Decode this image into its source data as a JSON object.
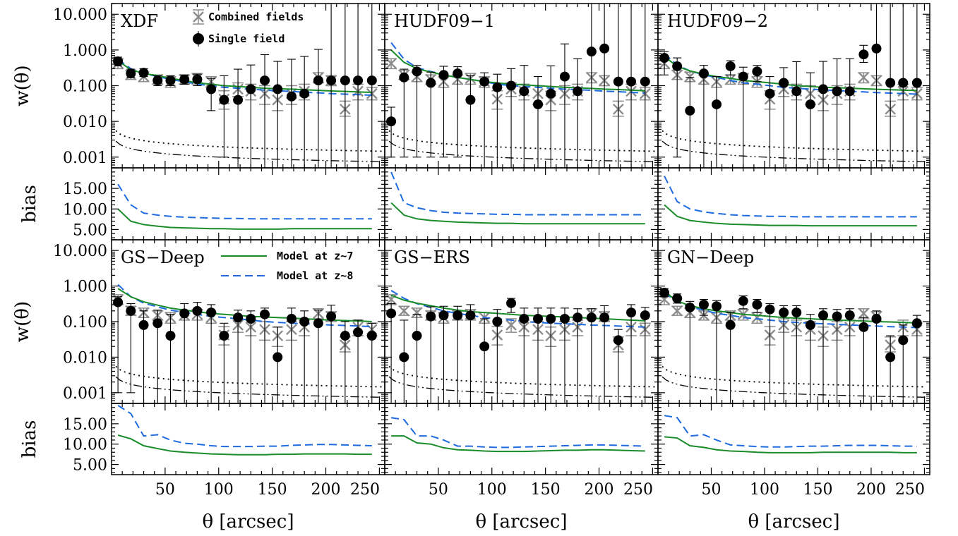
{
  "chart_data": {
    "type": "scatter",
    "xlabel": "θ [arcsec]",
    "ylabel_top": "w(θ)",
    "ylabel_bottom": "bias",
    "xlim": [
      0,
      255
    ],
    "xticks": [
      50,
      100,
      150,
      200,
      250
    ],
    "wtheta_ylim": [
      0.0005,
      20
    ],
    "wtheta_log": true,
    "wtheta_ticks": [
      0.001,
      0.01,
      0.1,
      1,
      10
    ],
    "wtheta_tick_labels": [
      "0.001",
      "0.010",
      "0.100",
      "1.000",
      "10.000"
    ],
    "bias_ylim": [
      2.5,
      20
    ],
    "bias_ticks": [
      5,
      10,
      15
    ],
    "bias_tick_labels": [
      "5.00",
      "10.00",
      "15.00"
    ],
    "legend": {
      "combined": "Combined fields",
      "single": "Single field",
      "model7": "Model at z~7",
      "model8": "Model at z~8"
    },
    "colors": {
      "model7": "#1a8c2a",
      "model8": "#1e6be0",
      "combined": "#8c8c8c",
      "single": "#000000"
    },
    "theta": [
      6,
      18,
      30,
      43,
      55,
      68,
      80,
      93,
      105,
      118,
      130,
      143,
      155,
      168,
      180,
      193,
      205,
      218,
      230,
      243
    ],
    "combined_fields": [
      0.42,
      0.2,
      0.18,
      0.15,
      0.13,
      0.15,
      0.16,
      0.13,
      0.042,
      0.08,
      0.07,
      0.06,
      0.04,
      0.06,
      0.07,
      0.17,
      0.14,
      0.022,
      0.07,
      0.06
    ],
    "combined_err_up": [
      0.15,
      0.07,
      0.06,
      0.05,
      0.05,
      0.05,
      0.06,
      0.05,
      0.03,
      0.04,
      0.04,
      0.04,
      0.03,
      0.04,
      0.04,
      0.06,
      0.05,
      0.015,
      0.04,
      0.03
    ],
    "combined_err_down": [
      0.12,
      0.05,
      0.05,
      0.04,
      0.04,
      0.04,
      0.05,
      0.04,
      0.02,
      0.03,
      0.03,
      0.03,
      0.02,
      0.03,
      0.03,
      0.05,
      0.04,
      0.008,
      0.03,
      0.02
    ],
    "panels": [
      {
        "label": "XDF",
        "single_field": [
          0.48,
          0.22,
          0.23,
          0.14,
          0.14,
          0.15,
          0.15,
          0.08,
          0.04,
          0.04,
          0.08,
          0.14,
          0.08,
          0.05,
          0.06,
          0.14,
          0.14,
          0.14,
          0.14,
          0.14
        ],
        "err_up": [
          0.15,
          0.07,
          0.07,
          0.05,
          0.05,
          0.05,
          0.06,
          0.08,
          0.15,
          0.25,
          0.3,
          0.6,
          0.4,
          0.5,
          0.6,
          0.9,
          20,
          20,
          20,
          20
        ],
        "err_down": [
          0.12,
          0.05,
          0.05,
          0.04,
          0.04,
          0.04,
          0.05,
          0.06,
          0.039,
          0.0395,
          0.0795,
          0.1395,
          0.0795,
          0.0495,
          0.0595,
          0.1395,
          0.1395,
          0.1395,
          0.1395,
          0.1395
        ],
        "model7_w": [
          0.5,
          0.28,
          0.22,
          0.19,
          0.16,
          0.14,
          0.12,
          0.11,
          0.1,
          0.095,
          0.09,
          0.085,
          0.082,
          0.08,
          0.077,
          0.074,
          0.071,
          0.069,
          0.067,
          0.065
        ],
        "model8_w": [
          0.55,
          0.3,
          0.22,
          0.18,
          0.15,
          0.13,
          0.11,
          0.1,
          0.09,
          0.085,
          0.08,
          0.075,
          0.072,
          0.069,
          0.066,
          0.063,
          0.06,
          0.058,
          0.056,
          0.054
        ],
        "bias7": [
          10,
          7,
          6.2,
          5.8,
          5.5,
          5.4,
          5.3,
          5.2,
          5.2,
          5.1,
          5.1,
          5.1,
          5.1,
          5.2,
          5.2,
          5.2,
          5.2,
          5.2,
          5.2,
          5.2
        ],
        "bias8": [
          16,
          11,
          9,
          8.5,
          8.2,
          8,
          7.9,
          7.8,
          7.7,
          7.7,
          7.6,
          7.6,
          7.6,
          7.6,
          7.6,
          7.6,
          7.6,
          7.6,
          7.6,
          7.6
        ]
      },
      {
        "label": "HUDF09−1",
        "single_field": [
          0.01,
          0.17,
          0.25,
          0.12,
          0.2,
          0.22,
          0.04,
          0.13,
          0.09,
          0.1,
          0.07,
          0.03,
          0.06,
          0.18,
          0.07,
          0.9,
          1.1,
          0.13,
          0.13,
          0.13
        ],
        "err_up": [
          0.015,
          0.12,
          0.12,
          0.12,
          0.15,
          0.12,
          0.15,
          0.1,
          0.12,
          0.2,
          0.3,
          0.15,
          0.3,
          1.3,
          0.5,
          20,
          20,
          20,
          20,
          20
        ],
        "err_down": [
          0.009,
          0.169,
          0.249,
          0.119,
          0.199,
          0.219,
          0.0395,
          0.1295,
          0.0895,
          0.0995,
          0.0695,
          0.0295,
          0.0595,
          0.1795,
          0.0695,
          0.8995,
          1.0995,
          0.1295,
          0.1295,
          0.1295
        ],
        "model7_w": [
          1.0,
          0.45,
          0.3,
          0.24,
          0.2,
          0.17,
          0.15,
          0.13,
          0.12,
          0.11,
          0.105,
          0.1,
          0.095,
          0.09,
          0.087,
          0.084,
          0.08,
          0.078,
          0.075,
          0.072
        ],
        "model8_w": [
          1.6,
          0.55,
          0.32,
          0.25,
          0.2,
          0.17,
          0.15,
          0.13,
          0.11,
          0.1,
          0.095,
          0.09,
          0.085,
          0.08,
          0.077,
          0.074,
          0.07,
          0.068,
          0.065,
          0.062
        ],
        "bias7": [
          11.5,
          8.5,
          7.6,
          7.2,
          7,
          6.8,
          6.7,
          6.6,
          6.5,
          6.5,
          6.4,
          6.4,
          6.4,
          6.4,
          6.4,
          6.4,
          6.4,
          6.4,
          6.4,
          6.4
        ],
        "bias8": [
          19,
          11.5,
          10.3,
          9.6,
          9.2,
          9,
          8.9,
          8.8,
          8.7,
          8.7,
          8.6,
          8.6,
          8.6,
          8.6,
          8.6,
          8.6,
          8.6,
          8.6,
          8.6,
          8.6
        ]
      },
      {
        "label": "HUDF09−2",
        "single_field": [
          0.6,
          0.35,
          0.02,
          0.22,
          0.03,
          0.35,
          0.18,
          0.25,
          0.06,
          0.12,
          0.07,
          0.03,
          0.08,
          0.07,
          0.07,
          0.75,
          1.1,
          0.12,
          0.12,
          0.12
        ],
        "err_up": [
          0.3,
          0.25,
          0.15,
          0.15,
          0.15,
          0.15,
          0.15,
          0.12,
          0.12,
          0.2,
          0.4,
          0.2,
          0.4,
          0.5,
          0.5,
          0.6,
          20,
          20,
          20,
          20
        ],
        "err_down": [
          0.4,
          0.349,
          0.0195,
          0.2195,
          0.0295,
          0.15,
          0.1795,
          0.12,
          0.0595,
          0.1195,
          0.0695,
          0.0295,
          0.0795,
          0.0695,
          0.0695,
          0.3,
          1.0995,
          0.1195,
          0.1195,
          0.1195
        ],
        "model7_w": [
          0.65,
          0.35,
          0.26,
          0.21,
          0.18,
          0.16,
          0.14,
          0.13,
          0.12,
          0.11,
          0.1,
          0.095,
          0.09,
          0.088,
          0.085,
          0.082,
          0.079,
          0.077,
          0.075,
          0.073
        ],
        "model8_w": [
          0.8,
          0.38,
          0.26,
          0.2,
          0.17,
          0.14,
          0.12,
          0.11,
          0.1,
          0.09,
          0.085,
          0.08,
          0.076,
          0.073,
          0.07,
          0.067,
          0.064,
          0.062,
          0.06,
          0.058
        ],
        "bias7": [
          11,
          8.2,
          7.2,
          6.8,
          6.5,
          6.3,
          6.2,
          6.1,
          6,
          6,
          6,
          5.9,
          5.9,
          5.9,
          5.9,
          5.9,
          5.9,
          5.9,
          5.9,
          5.9
        ],
        "bias8": [
          18,
          11.8,
          10,
          9.3,
          8.9,
          8.6,
          8.4,
          8.3,
          8.2,
          8.2,
          8.1,
          8.1,
          8.1,
          8.1,
          8.1,
          8.1,
          8.1,
          8.1,
          8.1,
          8.1
        ]
      },
      {
        "label": "GS−Deep",
        "single_field": [
          0.35,
          0.2,
          0.08,
          0.09,
          0.04,
          0.17,
          0.2,
          0.18,
          0.04,
          0.13,
          0.12,
          0.16,
          0.01,
          0.12,
          0.1,
          0.09,
          0.14,
          0.04,
          0.05,
          0.04
        ],
        "err_up": [
          0.15,
          0.12,
          0.12,
          0.12,
          0.12,
          0.15,
          0.15,
          0.12,
          0.05,
          0.08,
          0.08,
          0.08,
          0.06,
          0.12,
          0.1,
          0.12,
          0.15,
          0.06,
          0.06,
          0.05
        ],
        "err_down": [
          0.349,
          0.199,
          0.0795,
          0.0895,
          0.0395,
          0.1695,
          0.1995,
          0.1795,
          0.0395,
          0.1295,
          0.1195,
          0.1595,
          0.0095,
          0.1195,
          0.0995,
          0.0895,
          0.1395,
          0.0395,
          0.0495,
          0.0395
        ],
        "model7_w": [
          0.85,
          0.5,
          0.36,
          0.29,
          0.24,
          0.21,
          0.19,
          0.17,
          0.16,
          0.15,
          0.14,
          0.135,
          0.13,
          0.125,
          0.12,
          0.115,
          0.11,
          0.107,
          0.104,
          0.1
        ],
        "model8_w": [
          1.1,
          0.5,
          0.33,
          0.26,
          0.21,
          0.18,
          0.16,
          0.14,
          0.13,
          0.12,
          0.11,
          0.1,
          0.095,
          0.09,
          0.087,
          0.084,
          0.08,
          0.078,
          0.075,
          0.072
        ],
        "bias7": [
          12.2,
          11.3,
          9.6,
          8.9,
          8.3,
          8,
          7.8,
          7.6,
          7.5,
          7.4,
          7.4,
          7.4,
          7.5,
          7.5,
          7.6,
          7.6,
          7.6,
          7.6,
          7.5,
          7.5
        ],
        "bias8": [
          19.5,
          17.5,
          12,
          12.3,
          11,
          10.2,
          10,
          9.6,
          9.4,
          9.4,
          9.4,
          9.5,
          9.5,
          9.7,
          9.8,
          9.9,
          9.9,
          9.8,
          9.7,
          9.6
        ]
      },
      {
        "label": "GS−ERS",
        "single_field": [
          0.17,
          0.01,
          0.04,
          0.14,
          0.15,
          0.15,
          0.15,
          0.02,
          0.1,
          0.33,
          0.12,
          0.12,
          0.12,
          0.12,
          0.13,
          0.13,
          0.13,
          0.03,
          0.18,
          0.15
        ],
        "err_up": [
          0.15,
          0.1,
          0.12,
          0.12,
          0.12,
          0.12,
          0.15,
          0.1,
          0.12,
          0.12,
          0.12,
          0.12,
          0.12,
          0.12,
          0.1,
          0.1,
          0.15,
          0.03,
          0.12,
          0.1
        ],
        "err_down": [
          0.1695,
          0.0095,
          0.0395,
          0.1395,
          0.1495,
          0.1495,
          0.1495,
          0.0195,
          0.0995,
          0.15,
          0.1195,
          0.1195,
          0.1195,
          0.1195,
          0.1295,
          0.1295,
          0.1295,
          0.0295,
          0.1795,
          0.1495
        ],
        "model7_w": [
          0.55,
          0.4,
          0.33,
          0.28,
          0.24,
          0.21,
          0.19,
          0.18,
          0.17,
          0.16,
          0.15,
          0.145,
          0.14,
          0.135,
          0.13,
          0.125,
          0.12,
          0.115,
          0.11,
          0.105
        ],
        "model8_w": [
          0.75,
          0.45,
          0.32,
          0.25,
          0.2,
          0.17,
          0.15,
          0.13,
          0.12,
          0.11,
          0.1,
          0.095,
          0.09,
          0.087,
          0.084,
          0.08,
          0.078,
          0.075,
          0.072,
          0.07
        ],
        "bias7": [
          12,
          12,
          10.3,
          10,
          9.1,
          8.6,
          8.5,
          8.3,
          8.2,
          8.2,
          8.2,
          8.3,
          8.4,
          8.5,
          8.5,
          8.6,
          8.6,
          8.5,
          8.4,
          8.3
        ],
        "bias8": [
          16.5,
          16,
          12,
          12,
          11,
          9.5,
          9.5,
          9.3,
          9.2,
          9.2,
          9.3,
          9.4,
          9.5,
          9.6,
          9.7,
          9.8,
          9.8,
          9.7,
          9.6,
          9.5
        ]
      },
      {
        "label": "GN−Deep",
        "single_field": [
          0.65,
          0.45,
          0.25,
          0.3,
          0.27,
          0.08,
          0.38,
          0.3,
          0.22,
          0.18,
          0.18,
          0.08,
          0.15,
          0.14,
          0.15,
          0.07,
          0.12,
          0.01,
          0.03,
          0.09
        ],
        "err_up": [
          0.2,
          0.15,
          0.12,
          0.12,
          0.12,
          0.1,
          0.15,
          0.12,
          0.1,
          0.1,
          0.1,
          0.08,
          0.08,
          0.08,
          0.08,
          0.06,
          0.08,
          0.03,
          0.05,
          0.06
        ],
        "err_down": [
          0.15,
          0.12,
          0.2495,
          0.15,
          0.2695,
          0.0795,
          0.15,
          0.12,
          0.2195,
          0.1795,
          0.1795,
          0.0795,
          0.1495,
          0.1395,
          0.1495,
          0.0695,
          0.1195,
          0.0095,
          0.0295,
          0.0895
        ],
        "model7_w": [
          0.7,
          0.38,
          0.28,
          0.23,
          0.2,
          0.18,
          0.16,
          0.15,
          0.14,
          0.13,
          0.125,
          0.12,
          0.115,
          0.11,
          0.107,
          0.104,
          0.1,
          0.098,
          0.095,
          0.092
        ],
        "model8_w": [
          0.65,
          0.36,
          0.26,
          0.21,
          0.17,
          0.15,
          0.13,
          0.12,
          0.11,
          0.1,
          0.095,
          0.09,
          0.087,
          0.084,
          0.08,
          0.078,
          0.075,
          0.072,
          0.07,
          0.068
        ],
        "bias7": [
          11.8,
          11.5,
          9.6,
          9.2,
          8.6,
          8.3,
          8.2,
          8,
          7.9,
          7.9,
          7.9,
          7.9,
          8,
          8,
          8,
          8,
          8,
          8,
          7.9,
          7.9
        ],
        "bias8": [
          17,
          16.5,
          12,
          12.3,
          11,
          9.8,
          9.6,
          9.4,
          9.3,
          9.3,
          9.4,
          9.5,
          9.5,
          9.6,
          9.7,
          9.7,
          9.7,
          9.6,
          9.5,
          9.5
        ]
      }
    ]
  }
}
